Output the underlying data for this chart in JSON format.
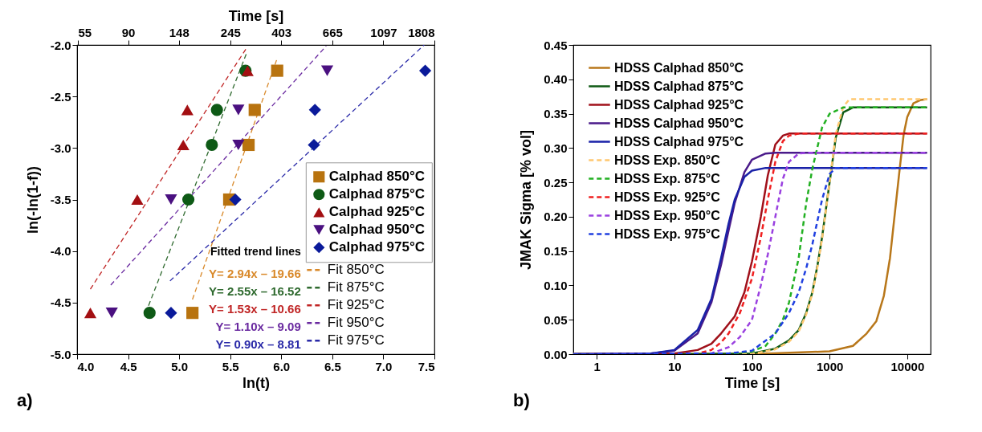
{
  "chart_data": [
    {
      "type": "scatter",
      "xlabel": "ln(t)",
      "ylabel": "ln(-ln(1-f))",
      "x2label": "Time [s]",
      "xlim": [
        4,
        7.5
      ],
      "ylim": [
        -5,
        -2
      ],
      "xticks": [
        {
          "value": 4,
          "label": "4.0"
        },
        {
          "value": 4.5,
          "label": "4.5"
        },
        {
          "value": 5,
          "label": "5.0"
        },
        {
          "value": 5.5,
          "label": "5.5"
        },
        {
          "value": 6,
          "label": "6.0"
        },
        {
          "value": 6.5,
          "label": "6.5"
        },
        {
          "value": 7,
          "label": "7.0"
        },
        {
          "value": 7.5,
          "label": "7.5"
        }
      ],
      "x2lim": [
        54.6,
        1808
      ],
      "log": "x2",
      "x2ticks": [
        55,
        90,
        148,
        245,
        403,
        665,
        1097,
        1808
      ],
      "yticks": [
        {
          "value": -5,
          "label": "-5.0"
        },
        {
          "value": -4.5,
          "label": "-4.5"
        },
        {
          "value": -4,
          "label": "-4.0"
        },
        {
          "value": -3.5,
          "label": "-3.5"
        },
        {
          "value": -3,
          "label": "-3.0"
        },
        {
          "value": -2.5,
          "label": "-2.5"
        },
        {
          "value": -2,
          "label": "-2.0"
        }
      ],
      "legend": "bottom right",
      "annotations": [
        "Fitted trend lines",
        "Y= 2.94x – 19.66",
        "Y= 2.55x – 16.52",
        "Y= 1.53x – 10.66",
        "Y= 1.10x – 9.09",
        "Y= 0.90x – 8.81",
        "a)"
      ],
      "series": [
        {
          "name": "Calphad 850°C",
          "marker": "square",
          "color": "#b8730f",
          "x": [
            5.13,
            5.49,
            5.68,
            5.74,
            5.96
          ],
          "values": [
            -4.6,
            -3.5,
            -2.97,
            -2.63,
            -2.25
          ]
        },
        {
          "name": "Calphad 875°C",
          "marker": "circle",
          "color": "#0e5a16",
          "x": [
            4.71,
            5.09,
            5.32,
            5.37,
            5.65
          ],
          "values": [
            -4.6,
            -3.5,
            -2.97,
            -2.63,
            -2.25
          ]
        },
        {
          "name": "Calphad 925°C",
          "marker": "triangle",
          "color": "#a30f12",
          "x": [
            4.13,
            4.59,
            5.04,
            5.08,
            5.67
          ],
          "values": [
            -4.6,
            -3.5,
            -2.97,
            -2.63,
            -2.25
          ]
        },
        {
          "name": "Calphad 950°C",
          "marker": "triangle-down",
          "color": "#4a1080",
          "x": [
            4.34,
            4.92,
            5.58,
            5.58,
            6.45
          ],
          "values": [
            -4.6,
            -3.5,
            -2.97,
            -2.63,
            -2.25
          ]
        },
        {
          "name": "Calphad 975°C",
          "marker": "diamond",
          "color": "#0a1a9a",
          "x": [
            4.92,
            5.55,
            6.32,
            6.33,
            7.41
          ],
          "values": [
            -4.6,
            -3.5,
            -2.97,
            -2.63,
            -2.25
          ]
        },
        {
          "name": "Fit 850°C",
          "type": "line",
          "line_style": "dashed",
          "color": "#d9892a",
          "x": [
            5.13,
            5.96
          ],
          "values": [
            -4.47,
            -2.13
          ]
        },
        {
          "name": "Fit 875°C",
          "type": "line",
          "line_style": "dashed",
          "color": "#2f6a2f",
          "x": [
            4.7,
            5.66
          ],
          "values": [
            -4.53,
            -2.08
          ]
        },
        {
          "name": "Fit 925°C",
          "type": "line",
          "line_style": "dashed",
          "color": "#c02525",
          "x": [
            4.13,
            5.66
          ],
          "values": [
            -4.37,
            -2.03
          ]
        },
        {
          "name": "Fit 950°C",
          "type": "line",
          "line_style": "dashed",
          "color": "#6a2aa0",
          "x": [
            4.33,
            6.44
          ],
          "values": [
            -4.33,
            -2.01
          ]
        },
        {
          "name": "Fit 975°C",
          "type": "line",
          "line_style": "dashed",
          "color": "#2a2aa8",
          "x": [
            4.91,
            7.4
          ],
          "values": [
            -4.29,
            -2.0
          ]
        }
      ]
    },
    {
      "type": "line",
      "xlabel": "Time [s]",
      "ylabel": "JMAK Sigma [% vol]",
      "log": "x",
      "xlim": [
        0.5,
        20000
      ],
      "xticks": [
        1,
        10,
        100,
        1000,
        10000
      ],
      "ylim": [
        0,
        0.45
      ],
      "yticks": [
        {
          "value": 0,
          "label": "0.00"
        },
        {
          "value": 0.05,
          "label": "0.05"
        },
        {
          "value": 0.1,
          "label": "0.10"
        },
        {
          "value": 0.15,
          "label": "0.15"
        },
        {
          "value": 0.2,
          "label": "0.20"
        },
        {
          "value": 0.25,
          "label": "0.25"
        },
        {
          "value": 0.3,
          "label": "0.30"
        },
        {
          "value": 0.35,
          "label": "0.35"
        },
        {
          "value": 0.4,
          "label": "0.40"
        },
        {
          "value": 0.45,
          "label": "0.45"
        }
      ],
      "legend": "top left",
      "annotations": [
        "b)"
      ],
      "series": [
        {
          "name": "HDSS Calphad 850°C",
          "line_style": "solid",
          "color": "#b8771a",
          "x": [
            0.5,
            100,
            1000,
            2000,
            3000,
            4000,
            5000,
            6000,
            7000,
            8000,
            9000,
            10000,
            12000,
            15000,
            18000
          ],
          "values": [
            0,
            0,
            0.004,
            0.012,
            0.03,
            0.048,
            0.085,
            0.14,
            0.21,
            0.27,
            0.32,
            0.345,
            0.365,
            0.37,
            0.371
          ]
        },
        {
          "name": "HDSS Calphad 875°C",
          "line_style": "solid",
          "color": "#0f5a14",
          "x": [
            0.5,
            10,
            100,
            200,
            300,
            400,
            500,
            600,
            700,
            800,
            1000,
            1200,
            1500,
            2000,
            18000
          ],
          "values": [
            0,
            0,
            0.001,
            0.008,
            0.02,
            0.035,
            0.06,
            0.09,
            0.13,
            0.17,
            0.25,
            0.315,
            0.352,
            0.359,
            0.359
          ]
        },
        {
          "name": "HDSS Calphad 925°C",
          "line_style": "solid",
          "color": "#a0101a",
          "x": [
            0.5,
            5,
            10,
            20,
            30,
            40,
            60,
            80,
            100,
            130,
            160,
            200,
            250,
            300,
            18000
          ],
          "values": [
            0,
            0,
            0.001,
            0.006,
            0.015,
            0.03,
            0.055,
            0.09,
            0.135,
            0.2,
            0.26,
            0.305,
            0.318,
            0.321,
            0.321
          ]
        },
        {
          "name": "HDSS Calphad 950°C",
          "line_style": "solid",
          "color": "#4a1a8a",
          "x": [
            0.5,
            5,
            10,
            20,
            30,
            40,
            50,
            60,
            80,
            100,
            150,
            200,
            18000
          ],
          "values": [
            0,
            0.001,
            0.005,
            0.03,
            0.075,
            0.13,
            0.18,
            0.22,
            0.265,
            0.283,
            0.292,
            0.293,
            0.293
          ]
        },
        {
          "name": "HDSS Calphad 975°C",
          "line_style": "solid",
          "color": "#1a22a8",
          "x": [
            0.5,
            1,
            5,
            10,
            20,
            30,
            40,
            50,
            60,
            80,
            100,
            150,
            18000
          ],
          "values": [
            0,
            0,
            0.001,
            0.006,
            0.035,
            0.08,
            0.14,
            0.19,
            0.225,
            0.258,
            0.267,
            0.271,
            0.271
          ]
        },
        {
          "name": "HDSS Exp. 850°C",
          "line_style": "dashed",
          "color": "#ffc870",
          "x": [
            0.5,
            100,
            200,
            300,
            400,
            500,
            600,
            700,
            800,
            1000,
            1200,
            1500,
            1800,
            18000
          ],
          "values": [
            0,
            0,
            0.007,
            0.018,
            0.033,
            0.058,
            0.088,
            0.128,
            0.168,
            0.25,
            0.32,
            0.36,
            0.371,
            0.371
          ]
        },
        {
          "name": "HDSS Exp. 875°C",
          "line_style": "dashed",
          "color": "#22b022",
          "x": [
            0.5,
            50,
            100,
            150,
            200,
            250,
            300,
            400,
            500,
            600,
            800,
            1000,
            1500,
            18000
          ],
          "values": [
            0,
            0,
            0.004,
            0.012,
            0.03,
            0.05,
            0.075,
            0.14,
            0.22,
            0.27,
            0.33,
            0.35,
            0.359,
            0.359
          ]
        },
        {
          "name": "HDSS Exp. 925°C",
          "line_style": "dashed",
          "color": "#f02020",
          "x": [
            0.5,
            20,
            30,
            40,
            50,
            70,
            100,
            130,
            160,
            200,
            250,
            300,
            400,
            18000
          ],
          "values": [
            0,
            0.001,
            0.006,
            0.017,
            0.03,
            0.06,
            0.11,
            0.17,
            0.225,
            0.28,
            0.31,
            0.318,
            0.321,
            0.321
          ]
        },
        {
          "name": "HDSS Exp. 950°C",
          "line_style": "dashed",
          "color": "#9a40e0",
          "x": [
            0.5,
            30,
            50,
            70,
            100,
            130,
            160,
            200,
            250,
            300,
            400,
            500,
            18000
          ],
          "values": [
            0,
            0.001,
            0.01,
            0.025,
            0.05,
            0.1,
            0.145,
            0.2,
            0.255,
            0.28,
            0.292,
            0.293,
            0.293
          ]
        },
        {
          "name": "HDSS Exp. 975°C",
          "line_style": "dashed",
          "color": "#2040e0",
          "x": [
            0.5,
            50,
            100,
            200,
            300,
            400,
            500,
            600,
            800,
            1000,
            1200,
            18000
          ],
          "values": [
            0,
            0.001,
            0.005,
            0.03,
            0.06,
            0.09,
            0.125,
            0.16,
            0.225,
            0.262,
            0.271,
            0.271
          ]
        }
      ]
    }
  ]
}
